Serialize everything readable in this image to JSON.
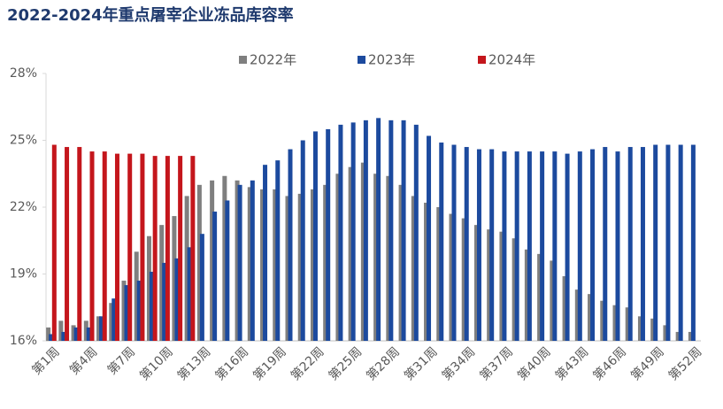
{
  "chart_data": {
    "type": "bar",
    "title": "2022-2024年重点屠宰企业冻品库容率",
    "categories": [
      "第1周",
      null,
      null,
      "第4周",
      null,
      null,
      "第7周",
      null,
      null,
      "第10周",
      null,
      null,
      "第13周",
      null,
      null,
      "第16周",
      null,
      null,
      "第19周",
      null,
      null,
      "第22周",
      null,
      null,
      "第25周",
      null,
      null,
      "第28周",
      null,
      null,
      "第31周",
      null,
      null,
      "第34周",
      null,
      null,
      "第37周",
      null,
      null,
      "第40周",
      null,
      null,
      "第43周",
      null,
      null,
      "第46周",
      null,
      null,
      "第49周",
      null,
      null,
      "第52周"
    ],
    "series": [
      {
        "name": "2022年",
        "color": "#7f7f7f",
        "values": [
          16.6,
          16.9,
          16.7,
          16.9,
          17.1,
          17.7,
          18.7,
          20.0,
          20.7,
          21.2,
          21.6,
          22.5,
          23.0,
          23.2,
          23.4,
          23.2,
          22.9,
          22.8,
          22.8,
          22.5,
          22.6,
          22.8,
          23.0,
          23.5,
          23.8,
          24.0,
          23.5,
          23.4,
          23.0,
          22.5,
          22.2,
          22.0,
          21.7,
          21.5,
          21.2,
          21.0,
          20.9,
          20.6,
          20.1,
          19.9,
          19.6,
          18.9,
          18.3,
          18.1,
          17.8,
          17.6,
          17.5,
          17.1,
          17.0,
          16.7,
          16.4,
          16.4
        ]
      },
      {
        "name": "2023年",
        "color": "#1c4a9e",
        "values": [
          16.3,
          16.4,
          16.6,
          16.6,
          17.1,
          17.9,
          18.5,
          18.7,
          19.1,
          19.5,
          19.7,
          20.2,
          20.8,
          21.8,
          22.3,
          23.0,
          23.2,
          23.9,
          24.1,
          24.6,
          25.0,
          25.4,
          25.5,
          25.7,
          25.8,
          25.9,
          26.0,
          25.9,
          25.9,
          25.7,
          25.2,
          24.9,
          24.8,
          24.7,
          24.6,
          24.6,
          24.5,
          24.5,
          24.5,
          24.5,
          24.5,
          24.4,
          24.5,
          24.6,
          24.7,
          24.5,
          24.7,
          24.7,
          24.8,
          24.8,
          24.8,
          24.8
        ]
      },
      {
        "name": "2024年",
        "color": "#c4161c",
        "values": [
          24.8,
          24.7,
          24.7,
          24.5,
          24.5,
          24.4,
          24.4,
          24.4,
          24.3,
          24.3,
          24.3,
          24.3,
          null,
          null,
          null,
          null,
          null,
          null,
          null,
          null,
          null,
          null,
          null,
          null,
          null,
          null,
          null,
          null,
          null,
          null,
          null,
          null,
          null,
          null,
          null,
          null,
          null,
          null,
          null,
          null,
          null,
          null,
          null,
          null,
          null,
          null,
          null,
          null,
          null,
          null,
          null,
          null
        ]
      }
    ],
    "ylim": [
      16,
      28
    ],
    "yticks": [
      {
        "value": 16,
        "label": "16%"
      },
      {
        "value": 19,
        "label": "19%"
      },
      {
        "value": 22,
        "label": "22%"
      },
      {
        "value": 25,
        "label": "25%"
      },
      {
        "value": 28,
        "label": "28%"
      }
    ],
    "grid": false
  }
}
